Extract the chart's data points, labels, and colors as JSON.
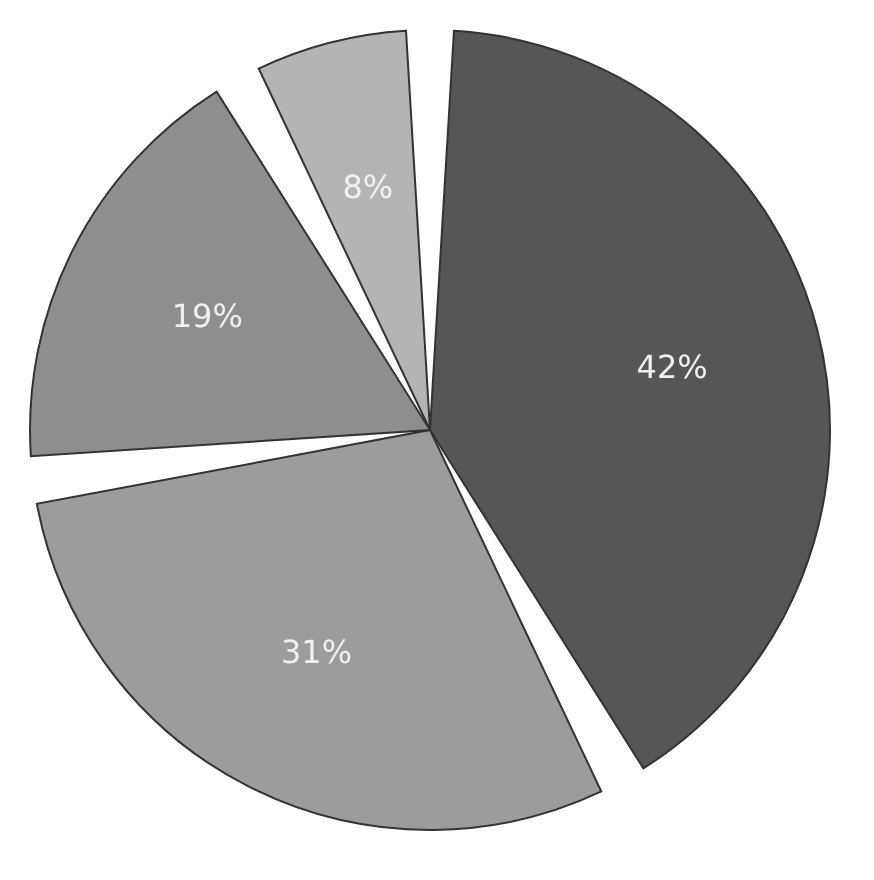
{
  "chart_data": {
    "type": "pie",
    "categories": [
      null,
      null,
      null,
      null
    ],
    "values": [
      42,
      31,
      19,
      8
    ],
    "colors": [
      "#565656",
      "#9c9c9c",
      "#8e8e8e",
      "#b4b4b4"
    ],
    "value_labels": [
      "42%",
      "31%",
      "19%",
      "8%"
    ],
    "legend": false
  }
}
